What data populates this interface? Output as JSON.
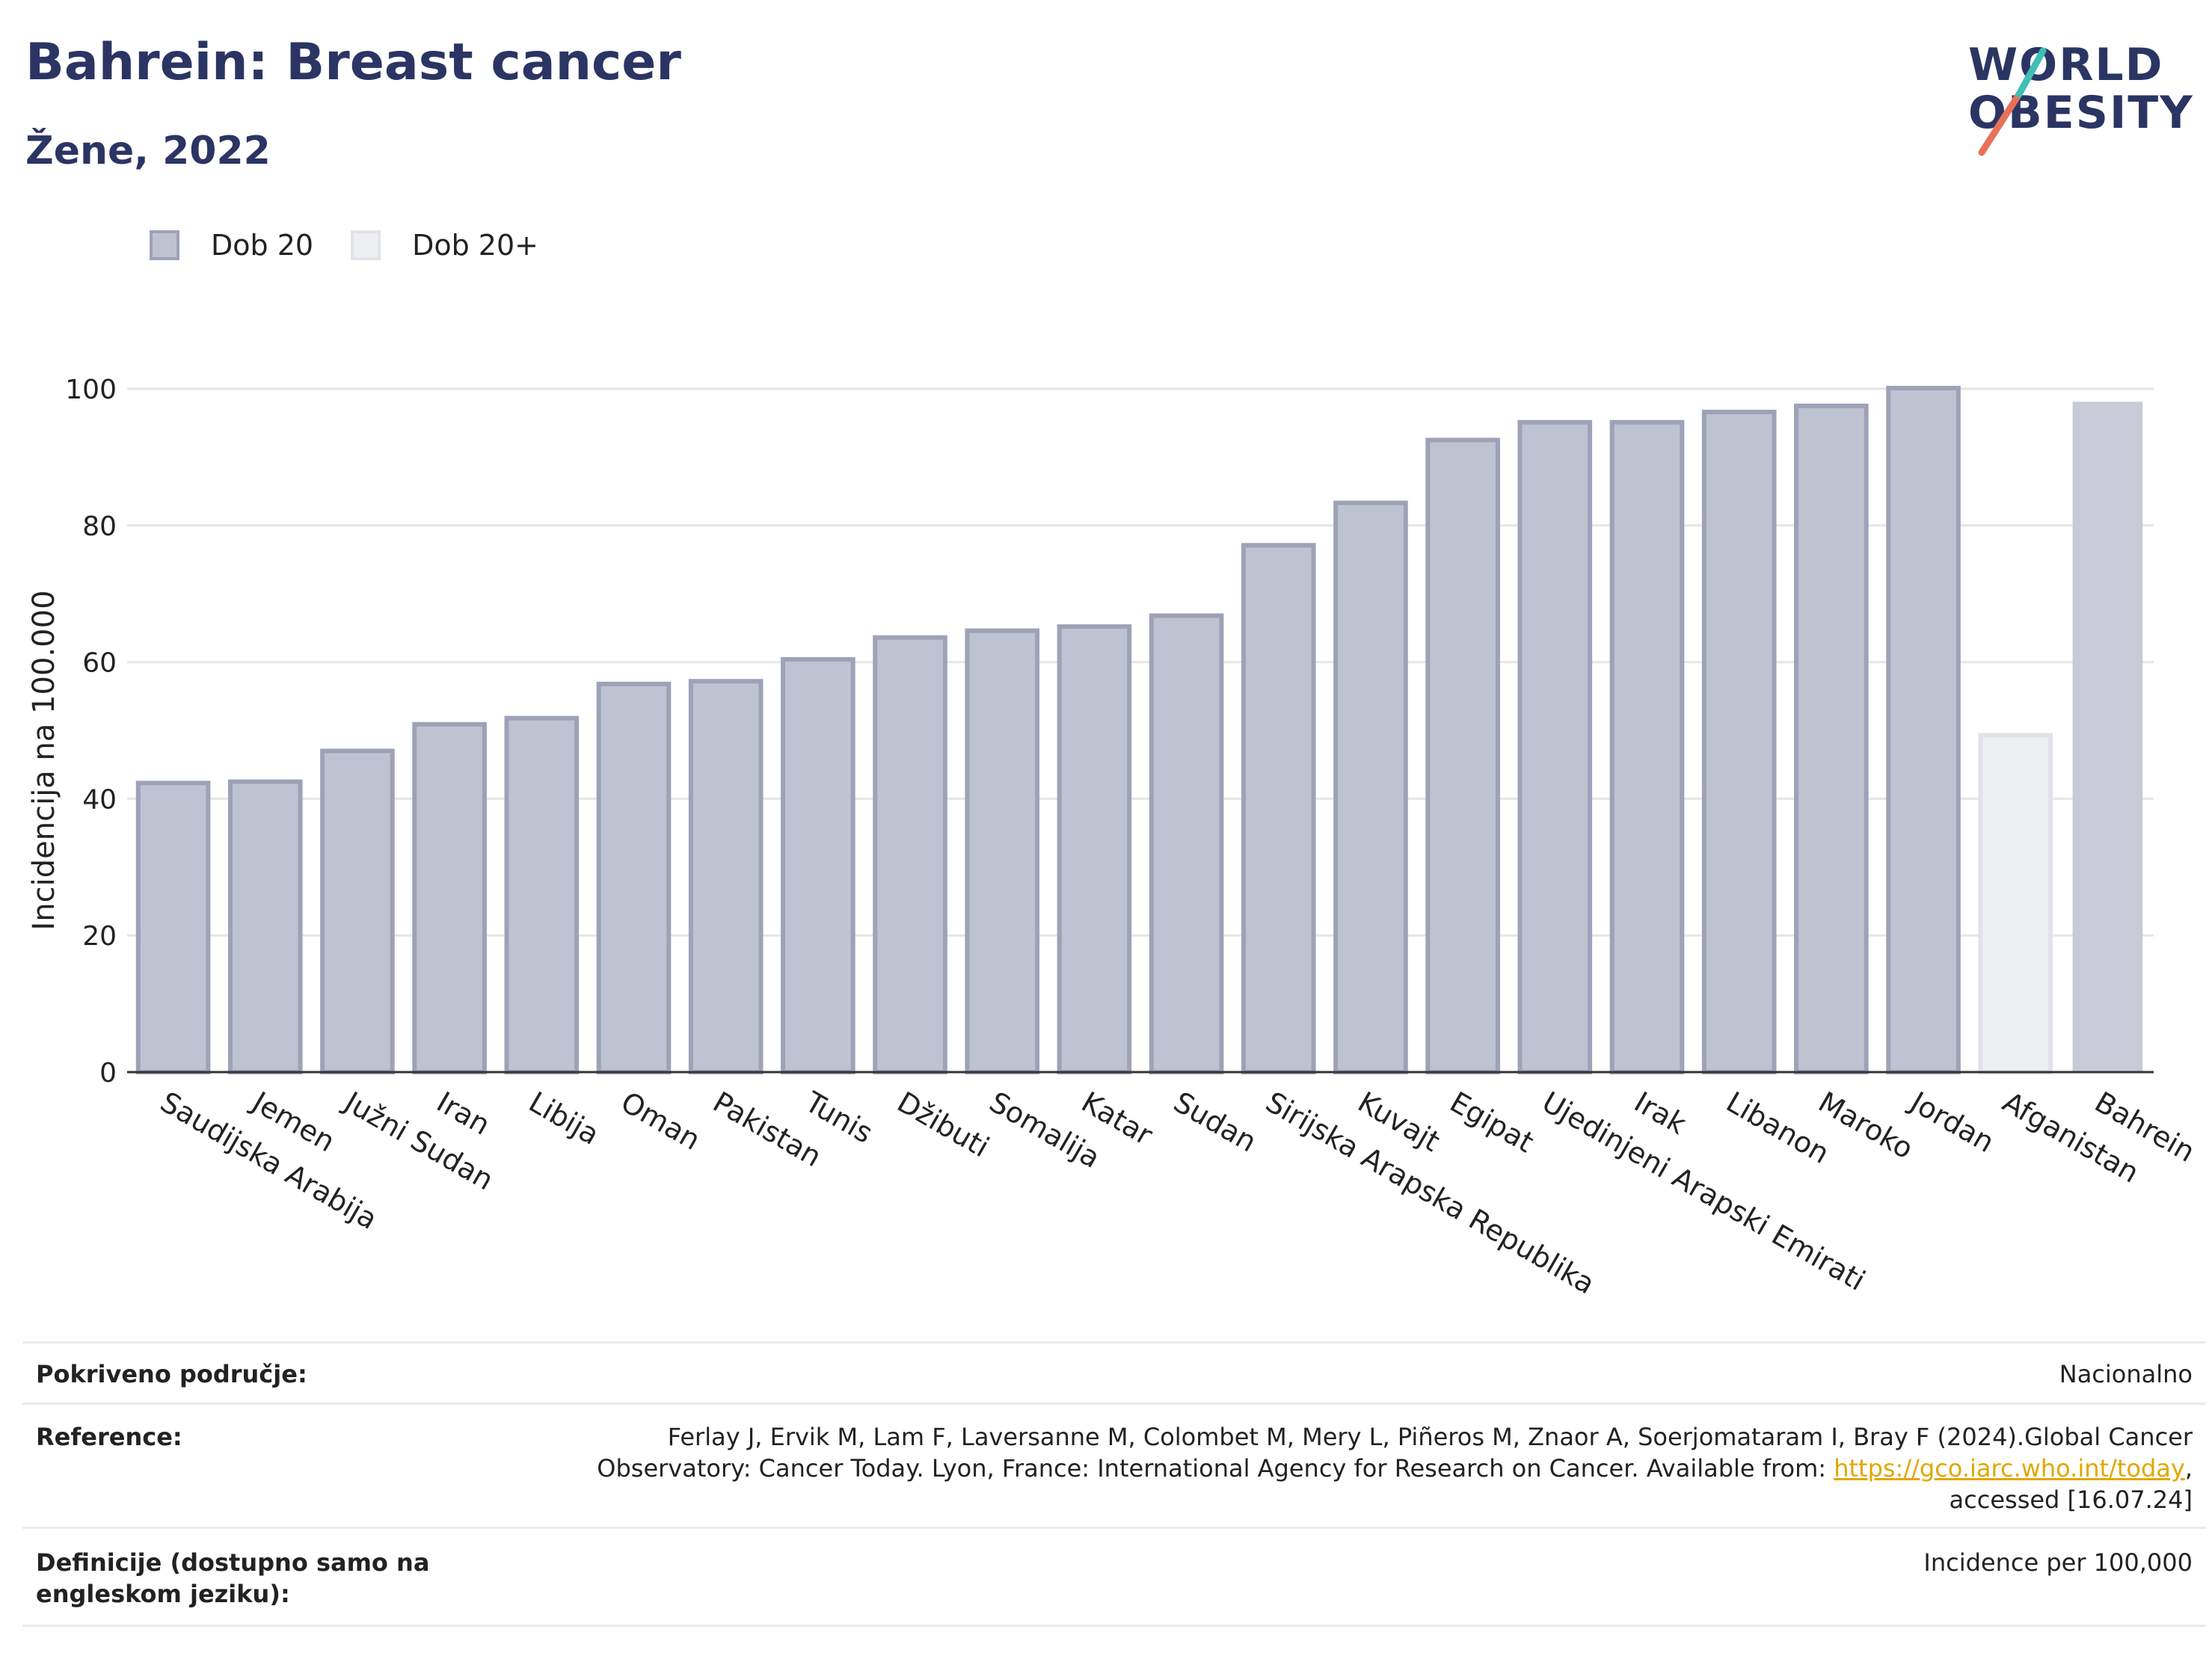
{
  "header": {
    "title": "Bahrein: Breast cancer",
    "subtitle": "Žene, 2022"
  },
  "logo": {
    "line1": "WORLD",
    "line2": "OBESITY"
  },
  "legend": [
    {
      "label": "Dob 20",
      "color": "#bfc2d1",
      "border": "#9ea2b8"
    },
    {
      "label": "Dob 20+",
      "color": "#eeeff3",
      "border": "#e1e3e9"
    }
  ],
  "chart_data": {
    "type": "bar",
    "ylabel": "Incidencija na 100.000",
    "ylim": [
      0,
      100
    ],
    "yticks": [
      0,
      20,
      40,
      60,
      80,
      100
    ],
    "grid": true,
    "categories": [
      "Saudijska Arabija",
      "Jemen",
      "Južni Sudan",
      "Iran",
      "Libija",
      "Oman",
      "Pakistan",
      "Tunis",
      "Džibuti",
      "Somalija",
      "Katar",
      "Sudan",
      "Sirijska Arapska Republika",
      "Kuvajt",
      "Egipat",
      "Ujedinjeni Arapski Emirati",
      "Irak",
      "Libanon",
      "Maroko",
      "Jordan",
      "Afganistan",
      "Bahrein"
    ],
    "values": [
      42.3,
      42.5,
      47.0,
      50.9,
      51.8,
      56.8,
      57.2,
      60.4,
      63.6,
      64.6,
      65.2,
      66.8,
      77.1,
      83.3,
      92.5,
      95.1,
      95.1,
      96.6,
      97.5,
      100.1,
      49.3,
      98.1
    ],
    "groups": [
      "Dob 20",
      "Dob 20",
      "Dob 20",
      "Dob 20",
      "Dob 20",
      "Dob 20",
      "Dob 20",
      "Dob 20",
      "Dob 20",
      "Dob 20",
      "Dob 20",
      "Dob 20",
      "Dob 20",
      "Dob 20",
      "Dob 20",
      "Dob 20",
      "Dob 20",
      "Dob 20",
      "Dob 20",
      "Dob 20",
      "Dob 20+",
      "Bahrein"
    ],
    "highlight": {
      "category": "Bahrein",
      "color": "#c8cad7"
    },
    "colors": {
      "Dob 20": "#bfc2d1",
      "Dob 20+": "#eeeff3"
    },
    "borders": {
      "Dob 20": "#9ea2b8",
      "Dob 20+": "#e1e3e9"
    }
  },
  "info": {
    "coverage_key": "Pokriveno područje:",
    "coverage_val": "Nacionalno",
    "reference_key": "Reference:",
    "reference_line1": "Ferlay J, Ervik M, Lam F, Laversanne M, Colombet M, Mery L, Piñeros M, Znaor A, Soerjomataram I, Bray F (2024).Global Cancer",
    "reference_line2_pre": "Observatory: Cancer Today. Lyon, France: International Agency for Research on Cancer. Available from: ",
    "reference_link": "https://gco.iarc.who.int/today",
    "reference_line2_post": ",",
    "reference_line3": "accessed [16.07.24]",
    "definitions_key": "Definicije (dostupno samo na engleskom jeziku):",
    "definitions_val": "Incidence per 100,000"
  }
}
